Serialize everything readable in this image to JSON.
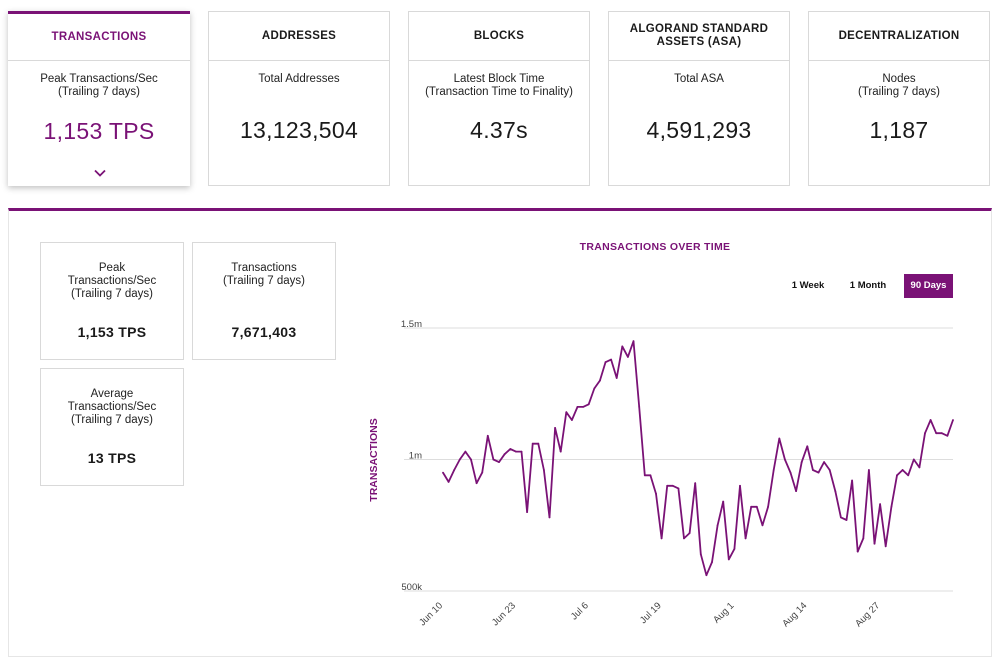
{
  "tabs": [
    {
      "title": "TRANSACTIONS",
      "subtitle": "Peak Transactions/Sec\n(Trailing 7 days)",
      "value": "1,153 TPS"
    },
    {
      "title": "ADDRESSES",
      "subtitle": "Total Addresses",
      "value": "13,123,504"
    },
    {
      "title": "BLOCKS",
      "subtitle": "Latest Block Time\n(Transaction Time to Finality)",
      "value": "4.37s"
    },
    {
      "title": "ALGORAND STANDARD\nASSETS (ASA)",
      "subtitle": "Total ASA",
      "value": "4,591,293"
    },
    {
      "title": "DECENTRALIZATION",
      "subtitle": "Nodes\n(Trailing 7 days)",
      "value": "1,187"
    }
  ],
  "stats": [
    {
      "label": "Peak\nTransactions/Sec\n(Trailing 7 days)",
      "value": "1,153 TPS"
    },
    {
      "label": "Transactions\n(Trailing 7 days)",
      "value": "7,671,403"
    },
    {
      "label": "Average\nTransactions/Sec\n(Trailing 7 days)",
      "value": "13 TPS"
    }
  ],
  "range_buttons": {
    "week": "1 Week",
    "month": "1 Month",
    "days90": "90 Days"
  },
  "colors": {
    "accent": "#7a1276",
    "border": "#d9d9d9",
    "grid": "#dddddd"
  },
  "chart_data": {
    "type": "line",
    "title": "TRANSACTIONS OVER TIME",
    "xlabel": "",
    "ylabel": "TRANSACTIONS",
    "y_ticks": [
      {
        "value": 500000,
        "label": "500k"
      },
      {
        "value": 1000000,
        "label": "1m"
      },
      {
        "value": 1500000,
        "label": "1.5m"
      }
    ],
    "x_ticks": [
      "Jun 10",
      "Jun 23",
      "Jul 6",
      "Jul 19",
      "Aug 1",
      "Aug 14",
      "Aug 27"
    ],
    "x_start": "2021-06-10",
    "ylim": [
      500000,
      1500000
    ],
    "series": [
      {
        "values": [
          950000,
          915000,
          960000,
          1000000,
          1030000,
          1000000,
          910000,
          950000,
          1090000,
          1000000,
          990000,
          1020000,
          1040000,
          1030000,
          1030000,
          800000,
          1060000,
          1060000,
          960000,
          780000,
          1120000,
          1030000,
          1180000,
          1150000,
          1200000,
          1200000,
          1210000,
          1270000,
          1300000,
          1370000,
          1380000,
          1310000,
          1430000,
          1390000,
          1450000,
          1200000,
          940000,
          940000,
          870000,
          700000,
          900000,
          900000,
          890000,
          700000,
          720000,
          910000,
          640000,
          560000,
          610000,
          750000,
          840000,
          620000,
          660000,
          900000,
          700000,
          820000,
          820000,
          750000,
          820000,
          960000,
          1080000,
          1000000,
          950000,
          880000,
          990000,
          1050000,
          960000,
          950000,
          990000,
          960000,
          880000,
          780000,
          770000,
          920000,
          650000,
          700000,
          960000,
          680000,
          830000,
          670000,
          820000,
          940000,
          960000,
          940000,
          1000000,
          970000,
          1100000,
          1150000,
          1100000,
          1100000,
          1090000,
          1150000
        ]
      }
    ]
  }
}
